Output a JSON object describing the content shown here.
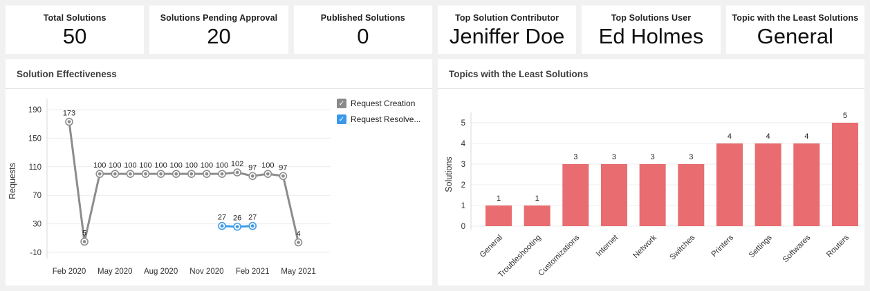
{
  "kpi": {
    "cards": [
      {
        "label": "Total Solutions",
        "value": "50"
      },
      {
        "label": "Solutions Pending Approval",
        "value": "20"
      },
      {
        "label": "Published Solutions",
        "value": "0"
      },
      {
        "label": "Top Solution Contributor",
        "value": "Jeniffer Doe"
      },
      {
        "label": "Top Solutions User",
        "value": "Ed Holmes"
      },
      {
        "label": "Topic with the Least Solutions",
        "value": "General"
      }
    ]
  },
  "panels": {
    "line": {
      "title": "Solution Effectiveness"
    },
    "bar": {
      "title": "Topics with the Least Solutions"
    }
  },
  "legend": {
    "items": [
      {
        "label": "Request Creation",
        "color": "#8a8a8a",
        "check_glyph": "✓",
        "checked": true
      },
      {
        "label": "Request Resolve...",
        "color": "#3998ea",
        "check_glyph": "✓",
        "checked": true
      }
    ]
  },
  "colors": {
    "page_background": "#f1f1f1",
    "card_background": "#ffffff",
    "gridline": "#ececec",
    "axis_line": "#d8d8d8",
    "line_series_gray": "#8c8c8c",
    "line_series_blue": "#3d9be9",
    "bar_fill": "#e86c70"
  },
  "chart_data": [
    {
      "type": "line",
      "title": "Solution Effectiveness",
      "xlabel": "",
      "ylabel": "Requests",
      "yticks": [
        190,
        150,
        110,
        70,
        30,
        -10
      ],
      "ylim": [
        -10,
        190
      ],
      "grid": true,
      "legend_position": "right",
      "x_tick_labels": [
        "Feb 2020",
        "May 2020",
        "Aug 2020",
        "Nov 2020",
        "Feb 2021",
        "May 2021"
      ],
      "x_tick_indices": [
        0,
        3,
        6,
        9,
        12,
        15
      ],
      "series": [
        {
          "name": "Request Creation",
          "color": "#8c8c8c",
          "start_index": 0,
          "values": [
            173,
            5,
            100,
            100,
            100,
            100,
            100,
            100,
            100,
            100,
            100,
            102,
            97,
            100,
            97,
            4
          ]
        },
        {
          "name": "Request Resolved",
          "color": "#3d9be9",
          "start_index": 10,
          "values": [
            27,
            26,
            27
          ]
        }
      ]
    },
    {
      "type": "bar",
      "title": "Topics with the Least Solutions",
      "xlabel": "",
      "ylabel": "Solutions",
      "categories": [
        "General",
        "Troubleshooting",
        "Customizations",
        "Internet",
        "Network",
        "Switches",
        "Printers",
        "Settings",
        "Softwares",
        "Routers"
      ],
      "values": [
        1,
        1,
        3,
        3,
        3,
        3,
        4,
        4,
        4,
        5
      ],
      "yticks": [
        0,
        1,
        2,
        3,
        4,
        5
      ],
      "ylim": [
        0,
        5
      ],
      "grid": true,
      "bar_color": "#e86c70"
    }
  ]
}
